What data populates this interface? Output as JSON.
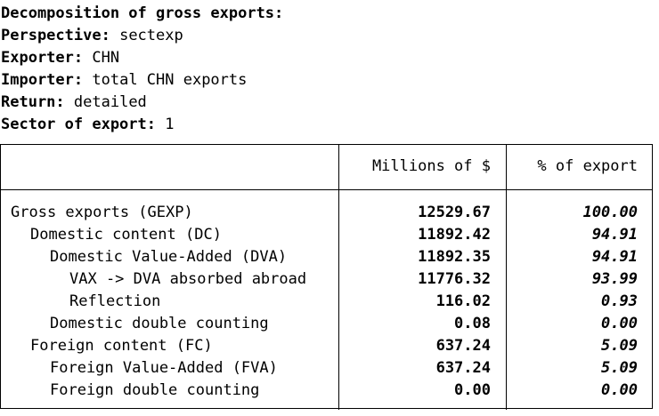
{
  "header": {
    "title": "Decomposition of gross exports:",
    "perspective_key": "Perspective:",
    "perspective_value": "sectexp",
    "exporter_key": "Exporter:",
    "exporter_value": "CHN",
    "importer_key": "Importer:",
    "importer_value": "total CHN exports",
    "return_key": "Return:",
    "return_value": "detailed",
    "sector_key": "Sector of export:",
    "sector_value": "1"
  },
  "table": {
    "columns": [
      "Millions of $",
      "% of export"
    ],
    "rows": [
      {
        "label": "Gross exports (GEXP)",
        "indent": 0,
        "value": "12529.67",
        "pct": "100.00"
      },
      {
        "label": "Domestic content (DC)",
        "indent": 1,
        "value": "11892.42",
        "pct": "94.91"
      },
      {
        "label": "Domestic Value-Added (DVA)",
        "indent": 2,
        "value": "11892.35",
        "pct": "94.91"
      },
      {
        "label": "VAX -> DVA absorbed abroad",
        "indent": 3,
        "value": "11776.32",
        "pct": "93.99"
      },
      {
        "label": "Reflection",
        "indent": 3,
        "value": "116.02",
        "pct": "0.93"
      },
      {
        "label": "Domestic double counting",
        "indent": 2,
        "value": "0.08",
        "pct": "0.00"
      },
      {
        "label": "Foreign content (FC)",
        "indent": 1,
        "value": "637.24",
        "pct": "5.09"
      },
      {
        "label": "Foreign Value-Added (FVA)",
        "indent": 2,
        "value": "637.24",
        "pct": "5.09"
      },
      {
        "label": "Foreign double counting",
        "indent": 2,
        "value": "0.00",
        "pct": "0.00"
      }
    ]
  }
}
